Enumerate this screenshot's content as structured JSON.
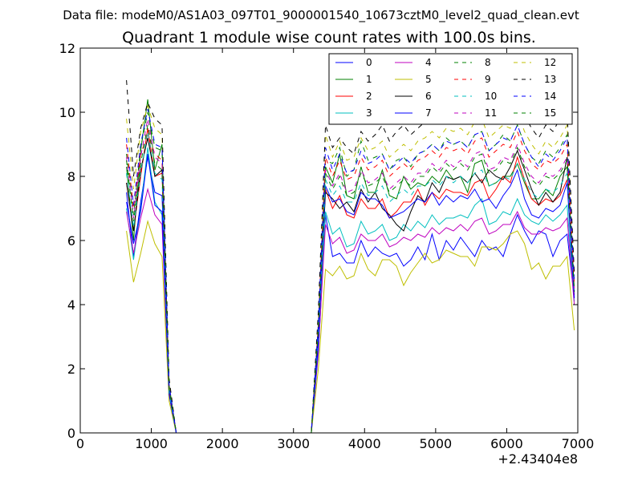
{
  "chart_data": {
    "type": "line",
    "suptitle": "Data file: modeM0/AS1A03_097T01_9000001540_10673cztM0_level2_quad_clean.evt",
    "title": "Quadrant 1 module wise count rates with 100.0s bins.",
    "xlabel": "",
    "ylabel": "",
    "x_offset_label": "+2.43404e8",
    "xlim": [
      0,
      7000
    ],
    "ylim": [
      0,
      12
    ],
    "xticks": [
      0,
      1000,
      2000,
      3000,
      4000,
      5000,
      6000,
      7000
    ],
    "xtick_labels": [
      "0",
      "1000",
      "2000",
      "3000",
      "4000",
      "5000",
      "6000",
      "7000"
    ],
    "yticks": [
      0,
      2,
      4,
      6,
      8,
      10,
      12
    ],
    "ytick_labels": [
      "0",
      "2",
      "4",
      "6",
      "8",
      "10",
      "12"
    ],
    "grid": false,
    "legend_position": "top-right",
    "legend_columns": 4,
    "x": [
      650,
      750,
      850,
      950,
      1050,
      1150,
      1250,
      1350,
      1450,
      1550,
      1650,
      1750,
      1850,
      1950,
      2050,
      2150,
      2250,
      2350,
      2450,
      2550,
      2650,
      2750,
      2850,
      2950,
      3050,
      3150,
      3250,
      3350,
      3450,
      3550,
      3650,
      3750,
      3850,
      3950,
      4050,
      4150,
      4250,
      4350,
      4450,
      4550,
      4650,
      4750,
      4850,
      4950,
      5050,
      5150,
      5250,
      5350,
      5450,
      5550,
      5650,
      5750,
      5850,
      5950,
      6050,
      6150,
      6250,
      6350,
      6450,
      6550,
      6650,
      6750,
      6850,
      6950
    ],
    "series": [
      {
        "name": "0",
        "color": "#0000ff",
        "dash": "solid",
        "values": [
          7.5,
          5.5,
          7.2,
          8.6,
          7.5,
          7.4,
          1.3,
          0,
          0,
          0,
          0,
          0,
          0,
          0,
          0,
          0,
          0,
          0,
          0,
          0,
          0,
          0,
          0,
          0,
          0,
          0,
          0,
          2.5,
          6.8,
          5.5,
          5.6,
          5.3,
          5.3,
          6.0,
          5.5,
          5.8,
          5.6,
          5.5,
          5.6,
          5.2,
          5.4,
          5.8,
          5.4,
          6.2,
          5.4,
          6.0,
          5.7,
          6.1,
          5.8,
          5.5,
          6.0,
          5.7,
          5.8,
          5.5,
          6.2,
          6.8,
          6.3,
          5.9,
          6.3,
          6.2,
          5.5,
          6.0,
          6.2,
          4.2
        ]
      },
      {
        "name": "1",
        "color": "#008000",
        "dash": "solid",
        "values": [
          8.3,
          6.0,
          8.8,
          10.4,
          8.2,
          9.0,
          1.4,
          0,
          0,
          0,
          0,
          0,
          0,
          0,
          0,
          0,
          0,
          0,
          0,
          0,
          0,
          0,
          0,
          0,
          0,
          0,
          0,
          3.3,
          8.3,
          7.8,
          8.7,
          7.4,
          7.3,
          8.3,
          7.5,
          7.5,
          8.2,
          7.4,
          7.3,
          8.0,
          7.6,
          7.8,
          7.7,
          8.0,
          7.8,
          8.2,
          7.9,
          8.0,
          7.5,
          8.4,
          8.5,
          7.7,
          7.8,
          8.0,
          8.0,
          8.4,
          7.8,
          7.3,
          7.3,
          7.6,
          7.4,
          8.0,
          8.3,
          4.5
        ]
      },
      {
        "name": "2",
        "color": "#ff0000",
        "dash": "solid",
        "values": [
          7.8,
          6.3,
          8.0,
          9.5,
          8.0,
          8.1,
          1.3,
          0,
          0,
          0,
          0,
          0,
          0,
          0,
          0,
          0,
          0,
          0,
          0,
          0,
          0,
          0,
          0,
          0,
          0,
          0,
          0,
          3.0,
          7.6,
          7.0,
          7.4,
          6.8,
          6.7,
          7.3,
          7.0,
          7.0,
          7.3,
          6.7,
          6.9,
          7.2,
          7.2,
          7.6,
          7.1,
          7.5,
          7.3,
          7.6,
          7.5,
          7.5,
          7.4,
          7.8,
          7.9,
          7.3,
          7.6,
          8.0,
          7.8,
          8.6,
          7.9,
          7.3,
          7.1,
          7.3,
          7.2,
          7.4,
          7.9,
          4.3
        ]
      },
      {
        "name": "3",
        "color": "#00bfbf",
        "dash": "solid",
        "values": [
          7.0,
          5.4,
          7.0,
          8.9,
          7.2,
          6.8,
          1.2,
          0,
          0,
          0,
          0,
          0,
          0,
          0,
          0,
          0,
          0,
          0,
          0,
          0,
          0,
          0,
          0,
          0,
          0,
          0,
          0,
          2.7,
          6.9,
          6.2,
          6.4,
          5.8,
          5.9,
          6.6,
          6.2,
          6.3,
          6.5,
          6.0,
          6.1,
          6.5,
          6.3,
          6.6,
          6.4,
          6.8,
          6.5,
          6.7,
          6.7,
          6.8,
          6.7,
          7.1,
          7.3,
          6.5,
          6.6,
          6.9,
          6.8,
          7.3,
          6.8,
          6.6,
          6.5,
          6.8,
          6.6,
          6.8,
          7.1,
          4.1
        ]
      },
      {
        "name": "4",
        "color": "#bf00bf",
        "dash": "solid",
        "values": [
          6.9,
          5.6,
          6.7,
          7.6,
          6.8,
          6.5,
          1.2,
          0,
          0,
          0,
          0,
          0,
          0,
          0,
          0,
          0,
          0,
          0,
          0,
          0,
          0,
          0,
          0,
          0,
          0,
          0,
          0,
          2.6,
          6.5,
          5.9,
          6.1,
          5.6,
          5.7,
          6.2,
          6.0,
          6.0,
          6.2,
          5.8,
          5.9,
          6.1,
          6.0,
          6.2,
          6.1,
          6.4,
          6.2,
          6.4,
          6.3,
          6.5,
          6.3,
          6.6,
          6.7,
          6.2,
          6.3,
          6.5,
          6.5,
          6.9,
          6.4,
          6.2,
          6.2,
          6.4,
          6.3,
          6.4,
          6.7,
          4.0
        ]
      },
      {
        "name": "5",
        "color": "#bfbf00",
        "dash": "solid",
        "values": [
          6.3,
          4.7,
          5.6,
          6.6,
          5.9,
          5.5,
          1.0,
          0,
          0,
          0,
          0,
          0,
          0,
          0,
          0,
          0,
          0,
          0,
          0,
          0,
          0,
          0,
          0,
          0,
          0,
          0,
          0,
          2.0,
          5.1,
          4.9,
          5.2,
          4.8,
          4.9,
          5.6,
          5.1,
          4.9,
          5.4,
          5.4,
          5.2,
          4.6,
          5.0,
          5.3,
          5.6,
          5.3,
          5.4,
          5.7,
          5.6,
          5.5,
          5.5,
          5.2,
          5.8,
          5.8,
          5.7,
          5.9,
          6.2,
          6.3,
          5.9,
          5.1,
          5.3,
          4.8,
          5.2,
          5.2,
          5.5,
          3.2
        ]
      },
      {
        "name": "6",
        "color": "#000000",
        "dash": "solid",
        "values": [
          7.8,
          6.3,
          8.2,
          9.2,
          8.0,
          8.2,
          1.4,
          0,
          0,
          0,
          0,
          0,
          0,
          0,
          0,
          0,
          0,
          0,
          0,
          0,
          0,
          0,
          0,
          0,
          0,
          0,
          0,
          3.1,
          7.5,
          7.3,
          7.0,
          7.2,
          6.9,
          7.6,
          7.2,
          7.5,
          7.0,
          6.8,
          6.5,
          6.3,
          6.9,
          7.4,
          7.2,
          7.8,
          7.5,
          8.0,
          7.9,
          8.0,
          7.8,
          8.1,
          7.8,
          8.2,
          8.0,
          7.9,
          8.3,
          8.8,
          8.2,
          7.6,
          7.1,
          7.5,
          7.2,
          7.5,
          8.6,
          4.4
        ]
      },
      {
        "name": "7",
        "color": "#0000ff",
        "dash": "solid",
        "values": [
          7.2,
          5.9,
          6.9,
          8.7,
          7.1,
          6.9,
          1.2,
          0,
          0,
          0,
          0,
          0,
          0,
          0,
          0,
          0,
          0,
          0,
          0,
          0,
          0,
          0,
          0,
          0,
          0,
          0,
          0,
          2.8,
          7.7,
          7.2,
          7.3,
          6.9,
          6.8,
          7.5,
          7.3,
          7.3,
          7.1,
          6.7,
          6.8,
          6.9,
          7.1,
          7.3,
          7.2,
          7.5,
          7.1,
          7.4,
          7.2,
          7.4,
          7.3,
          7.6,
          7.2,
          7.3,
          7.0,
          7.4,
          7.7,
          8.2,
          7.3,
          6.8,
          6.7,
          7.0,
          6.9,
          7.1,
          7.8,
          4.2
        ]
      },
      {
        "name": "8",
        "color": "#008000",
        "dash": "dashed",
        "values": [
          8.7,
          6.8,
          8.9,
          10.0,
          8.9,
          8.8,
          1.5,
          0,
          0,
          0,
          0,
          0,
          0,
          0,
          0,
          0,
          0,
          0,
          0,
          0,
          0,
          0,
          0,
          0,
          0,
          0,
          0,
          3.3,
          8.5,
          8.4,
          8.9,
          8.0,
          8.2,
          9.1,
          8.5,
          8.6,
          8.7,
          8.2,
          8.5,
          8.6,
          8.3,
          8.7,
          8.8,
          9.0,
          8.8,
          9.2,
          9.0,
          9.1,
          8.9,
          9.3,
          9.4,
          8.8,
          9.0,
          9.3,
          9.1,
          9.6,
          9.0,
          8.6,
          8.4,
          8.8,
          8.6,
          8.9,
          9.3,
          4.7
        ]
      },
      {
        "name": "9",
        "color": "#ff0000",
        "dash": "dashed",
        "values": [
          9.0,
          7.0,
          8.7,
          9.3,
          8.7,
          8.5,
          1.4,
          0,
          0,
          0,
          0,
          0,
          0,
          0,
          0,
          0,
          0,
          0,
          0,
          0,
          0,
          0,
          0,
          0,
          0,
          0,
          0,
          3.4,
          8.6,
          8.0,
          8.5,
          7.9,
          8.0,
          8.6,
          8.2,
          8.3,
          8.5,
          8.0,
          8.2,
          8.4,
          8.2,
          8.5,
          8.6,
          8.8,
          8.6,
          8.9,
          8.8,
          8.9,
          8.7,
          9.1,
          9.2,
          8.6,
          8.8,
          9.0,
          8.9,
          9.4,
          8.8,
          8.4,
          8.2,
          8.5,
          8.4,
          8.6,
          9.0,
          4.6
        ]
      },
      {
        "name": "10",
        "color": "#00bfbf",
        "dash": "dashed",
        "values": [
          8.1,
          6.4,
          8.1,
          9.4,
          8.1,
          7.9,
          1.3,
          0,
          0,
          0,
          0,
          0,
          0,
          0,
          0,
          0,
          0,
          0,
          0,
          0,
          0,
          0,
          0,
          0,
          0,
          0,
          0,
          3.1,
          7.9,
          7.4,
          7.7,
          7.2,
          7.2,
          7.8,
          7.4,
          7.5,
          7.7,
          7.2,
          7.4,
          7.6,
          7.4,
          7.7,
          7.7,
          7.9,
          7.7,
          8.0,
          7.8,
          8.0,
          7.8,
          8.1,
          8.2,
          7.7,
          7.8,
          8.0,
          7.9,
          8.4,
          7.9,
          7.5,
          7.3,
          7.6,
          7.5,
          7.7,
          8.1,
          4.4
        ]
      },
      {
        "name": "11",
        "color": "#bf00bf",
        "dash": "dashed",
        "values": [
          8.6,
          6.7,
          8.6,
          9.8,
          8.6,
          8.4,
          1.4,
          0,
          0,
          0,
          0,
          0,
          0,
          0,
          0,
          0,
          0,
          0,
          0,
          0,
          0,
          0,
          0,
          0,
          0,
          0,
          0,
          3.2,
          8.2,
          7.7,
          8.1,
          7.5,
          7.6,
          8.2,
          7.8,
          7.9,
          8.1,
          7.6,
          7.8,
          8.0,
          7.8,
          8.1,
          8.1,
          8.4,
          8.2,
          8.5,
          8.3,
          8.5,
          8.3,
          8.7,
          8.8,
          8.2,
          8.3,
          8.6,
          8.5,
          9.0,
          8.4,
          8.0,
          7.8,
          8.1,
          8.0,
          8.2,
          8.6,
          4.5
        ]
      },
      {
        "name": "12",
        "color": "#bfbf00",
        "dash": "dashed",
        "values": [
          9.8,
          7.6,
          9.4,
          10.2,
          9.5,
          9.3,
          1.6,
          0,
          0,
          0,
          0,
          0,
          0,
          0,
          0,
          0,
          0,
          0,
          0,
          0,
          0,
          0,
          0,
          0,
          0,
          0,
          0,
          3.6,
          9.3,
          8.6,
          9.1,
          8.5,
          8.6,
          9.2,
          8.8,
          8.9,
          9.1,
          8.6,
          8.8,
          9.0,
          8.8,
          9.1,
          9.2,
          9.4,
          9.2,
          9.5,
          9.4,
          9.5,
          9.3,
          9.7,
          9.8,
          9.2,
          9.4,
          9.6,
          9.5,
          10.0,
          9.4,
          9.0,
          8.7,
          9.1,
          8.9,
          9.2,
          9.6,
          4.9
        ]
      },
      {
        "name": "13",
        "color": "#000000",
        "dash": "dashed",
        "values": [
          11.0,
          8.0,
          9.5,
          10.3,
          9.8,
          9.6,
          1.7,
          0,
          0,
          0,
          0,
          0,
          0,
          0,
          0,
          0,
          0,
          0,
          0,
          0,
          0,
          0,
          0,
          0,
          0,
          0,
          0,
          3.8,
          9.6,
          8.9,
          9.2,
          8.9,
          8.7,
          9.4,
          9.1,
          9.3,
          9.6,
          9.1,
          9.4,
          9.6,
          9.3,
          9.5,
          9.7,
          9.9,
          9.8,
          10.1,
          10.0,
          10.1,
          9.9,
          10.3,
          10.4,
          9.8,
          10.0,
          10.2,
          10.1,
          10.6,
          9.9,
          9.5,
          9.2,
          9.6,
          9.4,
          9.8,
          10.0,
          5.0
        ]
      },
      {
        "name": "14",
        "color": "#0000ff",
        "dash": "dashed",
        "values": [
          9.2,
          7.1,
          9.0,
          10.1,
          9.0,
          8.9,
          1.5,
          0,
          0,
          0,
          0,
          0,
          0,
          0,
          0,
          0,
          0,
          0,
          0,
          0,
          0,
          0,
          0,
          0,
          0,
          0,
          0,
          3.4,
          8.9,
          8.2,
          8.7,
          8.1,
          8.2,
          8.8,
          8.4,
          8.5,
          8.7,
          8.2,
          8.4,
          8.6,
          8.4,
          8.7,
          8.8,
          9.0,
          8.8,
          9.1,
          9.0,
          9.1,
          8.9,
          9.3,
          9.4,
          8.8,
          9.0,
          9.2,
          9.1,
          9.6,
          9.0,
          8.6,
          8.3,
          8.7,
          8.5,
          8.8,
          9.2,
          4.7
        ]
      },
      {
        "name": "15",
        "color": "#008000",
        "dash": "dashed",
        "values": [
          8.5,
          6.6,
          8.4,
          9.6,
          8.4,
          8.2,
          1.4,
          0,
          0,
          0,
          0,
          0,
          0,
          0,
          0,
          0,
          0,
          0,
          0,
          0,
          0,
          0,
          0,
          0,
          0,
          0,
          0,
          3.2,
          8.1,
          7.6,
          8.0,
          7.4,
          7.5,
          8.1,
          7.7,
          7.8,
          8.0,
          7.5,
          7.7,
          7.9,
          7.7,
          8.0,
          8.0,
          8.3,
          8.1,
          8.4,
          8.2,
          8.4,
          8.2,
          8.6,
          8.7,
          8.1,
          8.2,
          8.5,
          8.4,
          8.9,
          8.3,
          7.9,
          7.7,
          8.0,
          7.9,
          8.1,
          8.5,
          4.4
        ]
      }
    ]
  }
}
